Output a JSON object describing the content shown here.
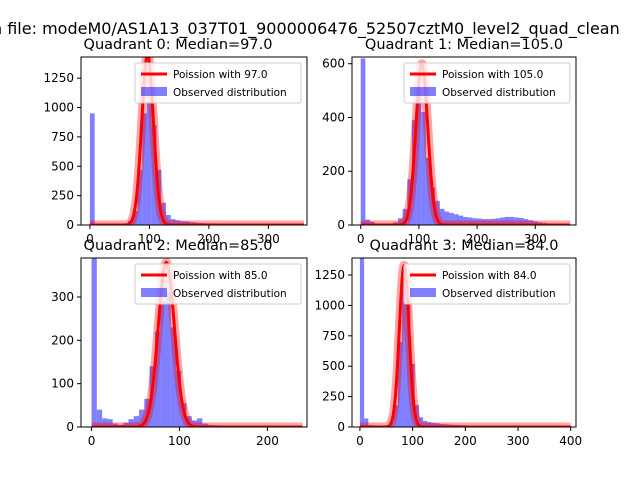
{
  "suptitle": "n file: modeM0/AS1A13_037T01_9000006476_52507cztM0_level2_quad_clean",
  "colors": {
    "hist": "#0000ff",
    "poisson": "#ff0000",
    "axis": "#000000"
  },
  "legend": {
    "poisson_prefix": "Poission with",
    "observed": "Observed distribution"
  },
  "chart_data": [
    {
      "type": "histogram+line",
      "title": "Quadrant 0: Median=97.0",
      "median": 97.0,
      "xlim": [
        -15,
        365
      ],
      "ylim": [
        0,
        1430
      ],
      "xticks": [
        0,
        100,
        200,
        300
      ],
      "yticks": [
        0,
        250,
        500,
        750,
        1000,
        1250
      ],
      "bin_width": 8,
      "bins_x": [
        0,
        8,
        16,
        24,
        32,
        40,
        48,
        56,
        64,
        72,
        80,
        88,
        96,
        104,
        112,
        120,
        128,
        136,
        144,
        152,
        160,
        168,
        176,
        184,
        192,
        200,
        208,
        216,
        224,
        232,
        240,
        248,
        256,
        264,
        272,
        280,
        288,
        296,
        304,
        312,
        320,
        328,
        336,
        344,
        352
      ],
      "bins_counts": [
        950,
        8,
        4,
        3,
        3,
        4,
        6,
        10,
        35,
        120,
        470,
        950,
        1050,
        850,
        470,
        190,
        85,
        50,
        40,
        32,
        30,
        24,
        20,
        17,
        15,
        14,
        14,
        12,
        11,
        10,
        9,
        9,
        8,
        8,
        7,
        6,
        6,
        6,
        5,
        5,
        4,
        4,
        4,
        3,
        2
      ],
      "poisson_label": "Poission with 97.0",
      "poisson": {
        "mean": 97.0,
        "peak": 1450,
        "x_range": [
          0,
          360
        ]
      }
    },
    {
      "type": "histogram+line",
      "title": "Quadrant 1: Median=105.0",
      "median": 105.0,
      "xlim": [
        -15,
        370
      ],
      "ylim": [
        0,
        625
      ],
      "xticks": [
        0,
        100,
        200,
        300
      ],
      "yticks": [
        0,
        200,
        400,
        600
      ],
      "bin_width": 8,
      "bins_x": [
        0,
        8,
        16,
        24,
        32,
        40,
        48,
        56,
        64,
        72,
        80,
        88,
        96,
        104,
        112,
        120,
        128,
        136,
        144,
        152,
        160,
        168,
        176,
        184,
        192,
        200,
        208,
        216,
        224,
        232,
        240,
        248,
        256,
        264,
        272,
        280,
        288,
        296,
        304,
        312,
        320,
        328,
        336,
        344,
        352
      ],
      "bins_counts": [
        620,
        20,
        12,
        6,
        5,
        5,
        6,
        10,
        25,
        60,
        170,
        390,
        500,
        420,
        250,
        140,
        90,
        60,
        50,
        45,
        40,
        35,
        30,
        28,
        25,
        24,
        22,
        22,
        23,
        25,
        28,
        30,
        30,
        28,
        26,
        22,
        18,
        14,
        10,
        8,
        6,
        5,
        4,
        3,
        2
      ],
      "poisson_label": "Poission with 105.0",
      "poisson": {
        "mean": 105.0,
        "peak": 600,
        "x_range": [
          0,
          360
        ]
      }
    },
    {
      "type": "histogram+line",
      "title": "Quadrant 2: Median=85.0",
      "median": 85.0,
      "xlim": [
        -12,
        245
      ],
      "ylim": [
        0,
        390
      ],
      "xticks": [
        0,
        100,
        200
      ],
      "yticks": [
        0,
        100,
        200,
        300
      ],
      "bin_width": 6,
      "bins_x": [
        0,
        6,
        12,
        18,
        24,
        30,
        36,
        42,
        48,
        54,
        60,
        66,
        72,
        78,
        84,
        90,
        96,
        102,
        108,
        114,
        120,
        126,
        132,
        138,
        144,
        150,
        156,
        162,
        168,
        174,
        180,
        186,
        192,
        198,
        204,
        210,
        216,
        222,
        228,
        234
      ],
      "bins_counts": [
        390,
        40,
        20,
        18,
        8,
        5,
        10,
        18,
        25,
        40,
        65,
        140,
        220,
        290,
        310,
        230,
        130,
        55,
        25,
        15,
        20,
        8,
        5,
        4,
        3,
        2,
        2,
        1,
        1,
        1,
        1,
        0,
        0,
        0,
        0,
        0,
        0,
        0,
        0,
        0
      ],
      "poisson_label": "Poission with 85.0",
      "poisson": {
        "mean": 85.0,
        "peak": 380,
        "x_range": [
          0,
          240
        ]
      }
    },
    {
      "type": "histogram+line",
      "title": "Quadrant 3: Median=84.0",
      "median": 84.0,
      "xlim": [
        -15,
        410
      ],
      "ylim": [
        0,
        1390
      ],
      "xticks": [
        0,
        100,
        200,
        300,
        400
      ],
      "yticks": [
        0,
        250,
        500,
        750,
        1000,
        1250
      ],
      "bin_width": 8,
      "bins_x": [
        0,
        8,
        16,
        24,
        32,
        40,
        48,
        56,
        64,
        72,
        80,
        88,
        96,
        104,
        112,
        120,
        128,
        136,
        144,
        152,
        160,
        168,
        176,
        184,
        192,
        200,
        208,
        216,
        224,
        232,
        240,
        248,
        256,
        264,
        272,
        280,
        288,
        296,
        304,
        312,
        320,
        328,
        336,
        344,
        352,
        360,
        368,
        376,
        384,
        392
      ],
      "bins_counts": [
        1390,
        70,
        15,
        8,
        5,
        6,
        12,
        40,
        180,
        700,
        1250,
        1050,
        520,
        180,
        80,
        50,
        40,
        35,
        30,
        25,
        22,
        20,
        18,
        16,
        14,
        12,
        10,
        9,
        8,
        7,
        6,
        5,
        5,
        4,
        4,
        3,
        3,
        3,
        2,
        2,
        2,
        2,
        2,
        1,
        1,
        1,
        1,
        1,
        1,
        1
      ],
      "poisson_label": "Poission with 84.0",
      "poisson": {
        "mean": 84.0,
        "peak": 1330,
        "x_range": [
          0,
          400
        ]
      }
    }
  ]
}
